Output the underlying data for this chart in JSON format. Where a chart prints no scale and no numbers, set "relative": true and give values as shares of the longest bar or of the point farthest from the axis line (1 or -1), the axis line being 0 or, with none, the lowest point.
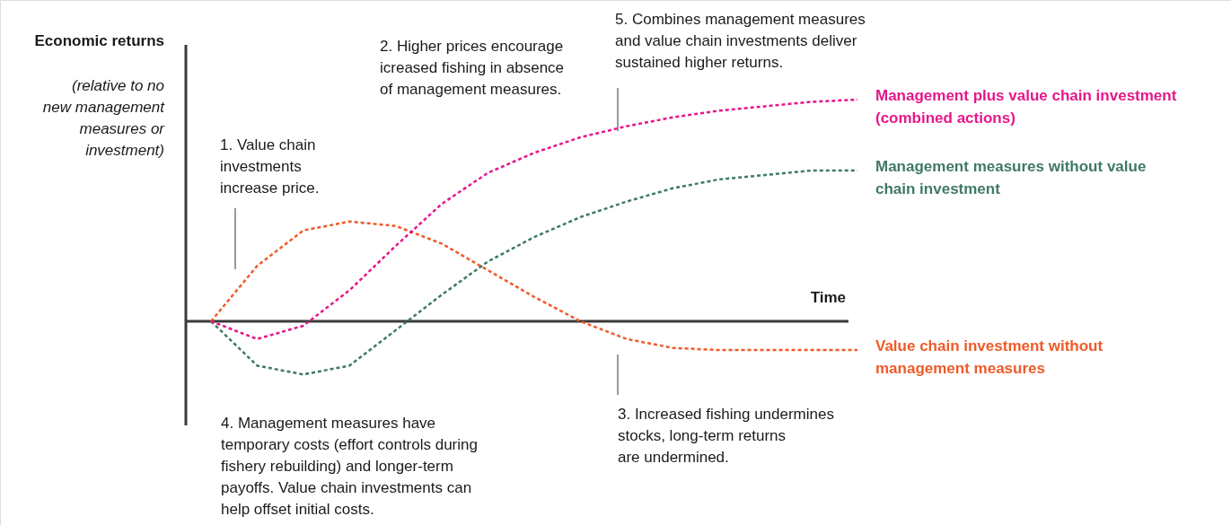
{
  "chart_data": {
    "type": "line",
    "relative": true,
    "xlabel": "Time",
    "ylabel": "Economic returns",
    "categories": [
      null,
      null,
      null,
      null,
      null,
      null,
      null,
      null,
      null,
      null,
      null,
      null,
      null,
      null,
      null
    ],
    "series": [
      {
        "name": "Management plus value chain investment\n(combined actions)",
        "color": "#e5178a",
        "values": [
          0,
          -0.08,
          -0.02,
          0.14,
          0.34,
          0.53,
          0.67,
          0.76,
          0.83,
          0.88,
          0.92,
          0.95,
          0.97,
          0.99,
          1.0
        ]
      },
      {
        "name": "Management measures without value\nchain investment",
        "color": "#3f7a63",
        "values": [
          0,
          -0.2,
          -0.24,
          -0.2,
          -0.04,
          0.12,
          0.27,
          0.38,
          0.47,
          0.54,
          0.6,
          0.64,
          0.66,
          0.68,
          0.68
        ]
      },
      {
        "name": "Value chain investment without\nmanagement measures",
        "color": "#f05a28",
        "values": [
          0,
          0.25,
          0.41,
          0.45,
          0.43,
          0.35,
          0.23,
          0.11,
          0.0,
          -0.08,
          -0.12,
          -0.13,
          -0.13,
          -0.13,
          -0.13
        ]
      }
    ],
    "annotations": [
      "(relative to no\nnew management\nmeasures or\ninvestment)",
      "1. Value chain\ninvestments\nincrease price.",
      "2. Higher prices encourage\nicreased fishing in absence\nof management measures.",
      "3. Increased fishing undermines\nstocks, long-term returns\nare undermined.",
      "4. Management measures have\ntemporary costs (effort controls during\nfishery rebuilding) and longer-term\npayoffs. Value chain investments can\nhelp offset initial costs.",
      "5. Combines management measures\nand value chain investments deliver\nsustained higher returns."
    ],
    "line_style": "dashed",
    "grid": false,
    "legend": "right"
  }
}
